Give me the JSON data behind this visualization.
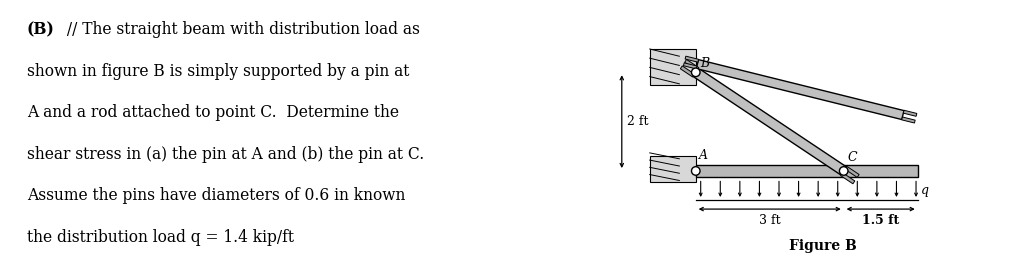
{
  "text_lines": [
    "(B) // The straight beam with distribution load as",
    "shown in figure B is simply supported by a pin at",
    "A and a rod attached to point C.  Determine the",
    "shear stress in (a) the pin at A and (b) the pin at C.",
    "Assume the pins have diameters of 0.6 in known",
    "the distribution load q = 1.4 kip/ft"
  ],
  "background_color": "#ffffff",
  "text_color": "#000000",
  "figure_label": "Figure B",
  "dim_3ft": "3 ft",
  "dim_15ft": "1.5 ft",
  "dim_2ft": "2 ft",
  "label_A": "A",
  "label_B": "B",
  "label_C": "C",
  "label_q": "q",
  "beam_color": "#b8b8b8",
  "rod_color": "#c0c0c0",
  "font_size_text": 11.2,
  "font_size_labels": 9,
  "font_size_figure": 10
}
